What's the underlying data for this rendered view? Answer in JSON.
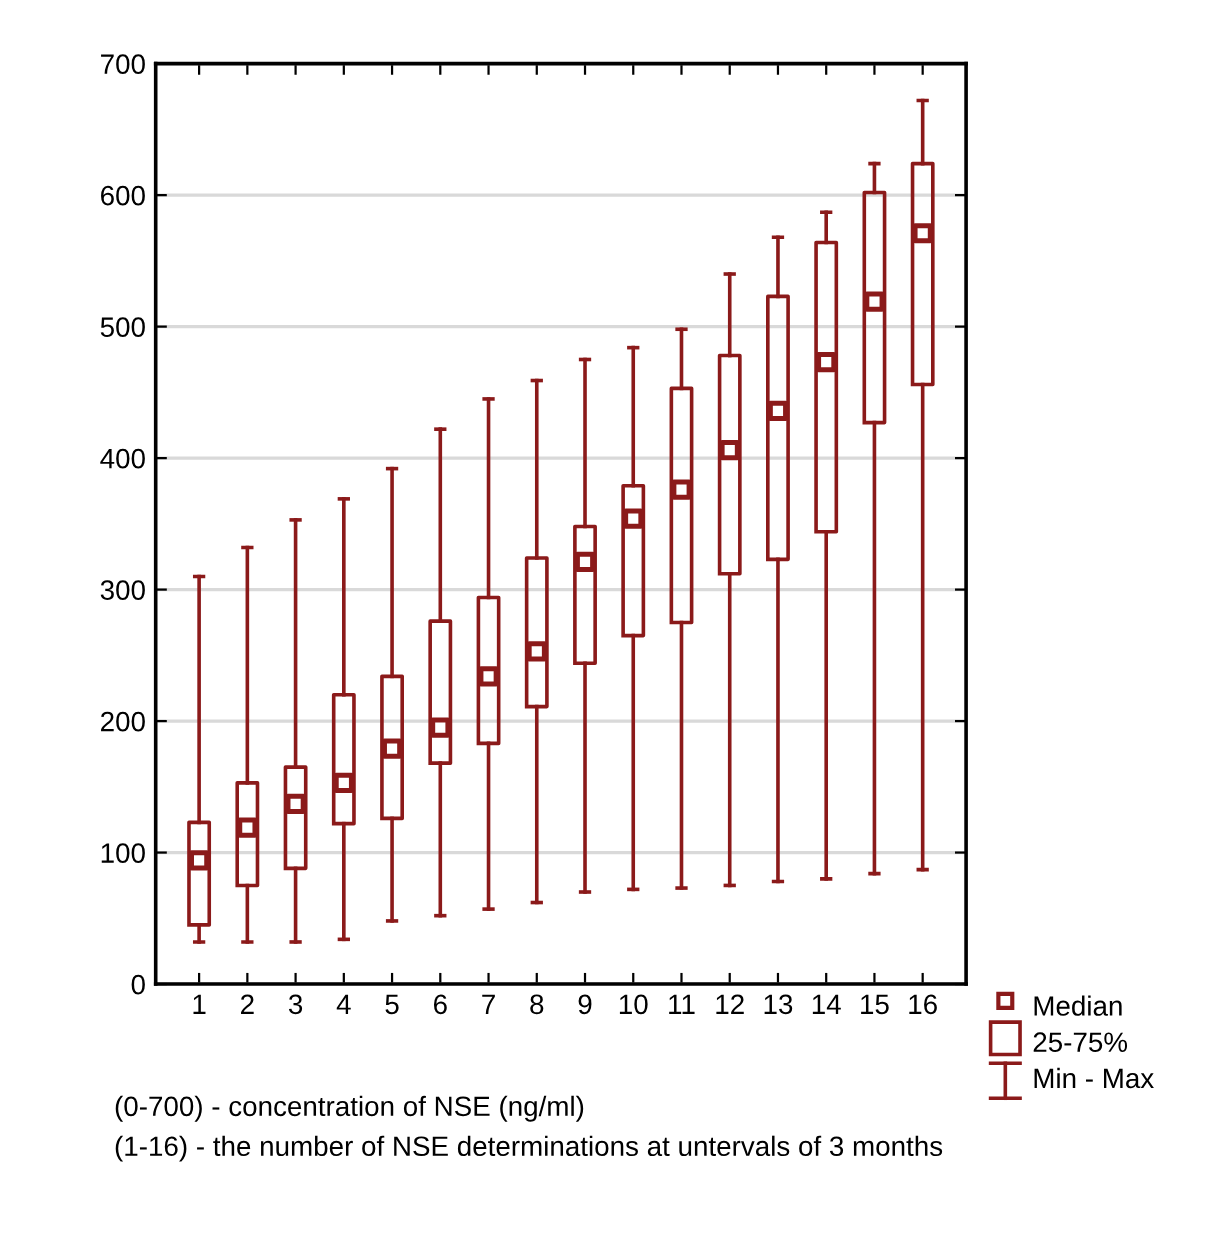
{
  "chart_data": {
    "type": "box",
    "categories": [
      "1",
      "2",
      "3",
      "4",
      "5",
      "6",
      "7",
      "8",
      "9",
      "10",
      "11",
      "12",
      "13",
      "14",
      "15",
      "16"
    ],
    "color": "#8b1a1a",
    "boxes": [
      {
        "low": 32,
        "q1": 45,
        "median": 94,
        "q3": 123,
        "high": 310
      },
      {
        "low": 32,
        "q1": 75,
        "median": 119,
        "q3": 153,
        "high": 332
      },
      {
        "low": 32,
        "q1": 88,
        "median": 137,
        "q3": 165,
        "high": 353
      },
      {
        "low": 34,
        "q1": 122,
        "median": 153,
        "q3": 220,
        "high": 369
      },
      {
        "low": 48,
        "q1": 126,
        "median": 179,
        "q3": 234,
        "high": 392
      },
      {
        "low": 52,
        "q1": 168,
        "median": 195,
        "q3": 276,
        "high": 422
      },
      {
        "low": 57,
        "q1": 183,
        "median": 234,
        "q3": 294,
        "high": 445
      },
      {
        "low": 62,
        "q1": 211,
        "median": 253,
        "q3": 324,
        "high": 459
      },
      {
        "low": 70,
        "q1": 244,
        "median": 321,
        "q3": 348,
        "high": 475
      },
      {
        "low": 72,
        "q1": 265,
        "median": 354,
        "q3": 379,
        "high": 484
      },
      {
        "low": 73,
        "q1": 275,
        "median": 376,
        "q3": 453,
        "high": 498
      },
      {
        "low": 75,
        "q1": 312,
        "median": 406,
        "q3": 478,
        "high": 540
      },
      {
        "low": 78,
        "q1": 323,
        "median": 436,
        "q3": 523,
        "high": 568
      },
      {
        "low": 80,
        "q1": 344,
        "median": 473,
        "q3": 564,
        "high": 587
      },
      {
        "low": 84,
        "q1": 427,
        "median": 519,
        "q3": 602,
        "high": 624
      },
      {
        "low": 87,
        "q1": 456,
        "median": 571,
        "q3": 624,
        "high": 672
      }
    ],
    "ylim": [
      0,
      700
    ],
    "yticks": [
      0,
      100,
      200,
      300,
      400,
      500,
      600,
      700
    ],
    "grid": "y",
    "marker": "square",
    "annotations": [
      "Median",
      "25-75%",
      "Min - Max",
      "(0-700) - concentration of NSE (ng/ml)",
      "(1-16) - the number of NSE determinations at untervals of 3 months"
    ]
  }
}
